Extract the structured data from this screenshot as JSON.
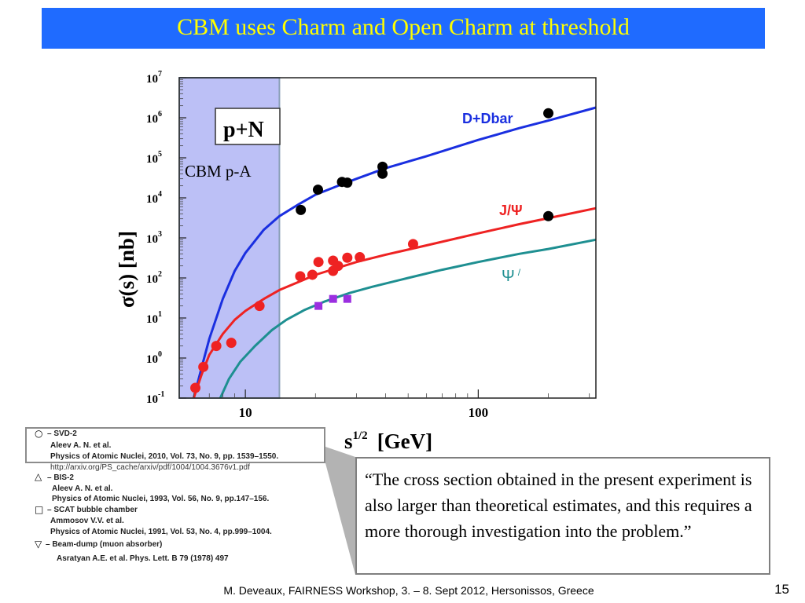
{
  "title": "CBM uses Charm and Open Charm at threshold",
  "chart_data": {
    "type": "scatter",
    "xscale": "log",
    "yscale": "log",
    "xlim": [
      5.2,
      320
    ],
    "ylim": [
      0.1,
      10000000
    ],
    "xlabel": "s^1/2 [GeV]",
    "xlabel_main": "s",
    "xlabel_sup": "1/2",
    "xlabel_unit": "[GeV]",
    "ylabel": "σ(s)  [nb]",
    "x_ticks": [
      {
        "value": 10,
        "label": "10"
      },
      {
        "value": 100,
        "label": "100"
      }
    ],
    "y_ticks": [
      {
        "exp": -1,
        "base": "10",
        "sup": "-1"
      },
      {
        "exp": 0,
        "base": "10",
        "sup": "0"
      },
      {
        "exp": 1,
        "base": "10",
        "sup": "1"
      },
      {
        "exp": 2,
        "base": "10",
        "sup": "2"
      },
      {
        "exp": 3,
        "base": "10",
        "sup": "3"
      },
      {
        "exp": 4,
        "base": "10",
        "sup": "4"
      },
      {
        "exp": 5,
        "base": "10",
        "sup": "5"
      },
      {
        "exp": 6,
        "base": "10",
        "sup": "6"
      },
      {
        "exp": 7,
        "base": "10",
        "sup": "7"
      }
    ],
    "panel_label": "p+N",
    "region": {
      "label": "CBM p-A",
      "x_from": 5.2,
      "x_to": 14
    },
    "curve_labels": {
      "ddbar": "D+Dbar",
      "jpsi": "J/Ψ",
      "psiprime": "Ψ",
      "psiprime_sup": "/"
    },
    "colors": {
      "ddbar": "#1a2fe0",
      "jpsi": "#ee2222",
      "psiprime": "#1e8f91",
      "region": "#bcc0f6"
    },
    "curves": [
      {
        "name": "D+Dbar",
        "color": "#1a2fe0",
        "x": [
          6.0,
          6.5,
          7.0,
          8.0,
          9.0,
          10,
          12,
          14,
          17,
          20,
          25,
          30,
          40,
          60,
          100,
          150,
          200,
          320
        ],
        "y": [
          0.1,
          0.6,
          3,
          30,
          150,
          420,
          1600,
          3500,
          7000,
          12000,
          20000,
          30000,
          55000,
          110000,
          280000,
          550000,
          850000,
          1800000
        ]
      },
      {
        "name": "J/Ψ",
        "color": "#ee2222",
        "x": [
          6.0,
          6.5,
          7.0,
          8.0,
          9.0,
          10,
          12,
          14,
          17,
          20,
          25,
          30,
          40,
          60,
          100,
          150,
          200,
          320
        ],
        "y": [
          0.1,
          0.4,
          1.2,
          4,
          9,
          15,
          30,
          50,
          80,
          120,
          180,
          250,
          380,
          650,
          1300,
          2200,
          3100,
          5500
        ]
      },
      {
        "name": "Ψ'",
        "color": "#1e8f91",
        "x": [
          7.8,
          8.5,
          9.5,
          11,
          13,
          15,
          18,
          22,
          28,
          35,
          50,
          70,
          100,
          150,
          200,
          320
        ],
        "y": [
          0.1,
          0.3,
          0.8,
          2,
          5,
          9,
          16,
          26,
          42,
          60,
          100,
          160,
          250,
          400,
          530,
          900
        ]
      }
    ],
    "series": [
      {
        "name": "D+Dbar data",
        "color": "#000000",
        "points": [
          {
            "x": 17.3,
            "y": 5000
          },
          {
            "x": 20.5,
            "y": 16000
          },
          {
            "x": 26,
            "y": 25000
          },
          {
            "x": 27.4,
            "y": 24000
          },
          {
            "x": 38.8,
            "y": 60000
          },
          {
            "x": 38.8,
            "y": 40000
          },
          {
            "x": 200,
            "y": 1300000
          }
        ]
      },
      {
        "name": "J/Ψ data",
        "color": "#ee2222",
        "points": [
          {
            "x": 6.1,
            "y": 0.18
          },
          {
            "x": 6.6,
            "y": 0.6
          },
          {
            "x": 7.5,
            "y": 2.0
          },
          {
            "x": 8.7,
            "y": 2.4
          },
          {
            "x": 11.5,
            "y": 20
          },
          {
            "x": 17.2,
            "y": 110
          },
          {
            "x": 19.4,
            "y": 120
          },
          {
            "x": 20.6,
            "y": 250
          },
          {
            "x": 23.8,
            "y": 270
          },
          {
            "x": 23.8,
            "y": 150
          },
          {
            "x": 25,
            "y": 200
          },
          {
            "x": 27.4,
            "y": 320
          },
          {
            "x": 31,
            "y": 330
          },
          {
            "x": 52.5,
            "y": 700
          }
        ]
      },
      {
        "name": "J/Ψ data (black)",
        "color": "#000000",
        "points": [
          {
            "x": 200,
            "y": 3500
          }
        ]
      },
      {
        "name": "Ψ' data",
        "color": "#9b2fe0",
        "points": [
          {
            "x": 20.6,
            "y": 20
          },
          {
            "x": 23.8,
            "y": 30
          },
          {
            "x": 27.4,
            "y": 30
          }
        ]
      }
    ]
  },
  "legend": {
    "items": [
      {
        "symbol": "○",
        "name": "– SVD-2",
        "authors": "Aleev A. N.  et al.",
        "ref": "Physics of Atomic Nuclei, 2010, Vol. 73, No. 9, pp. 1539–1550.",
        "url": "http://arxiv.org/PS_cache/arxiv/pdf/1004/1004.3676v1.pdf"
      },
      {
        "symbol": "△",
        "name": "–   BIS-2",
        "authors": "Aleev A. N.  et al.",
        "ref": "Physics of Atomic Nuclei, 1993, Vol. 56, No. 9, pp.147–156."
      },
      {
        "symbol": "□",
        "name": "– SCAT bubble chamber",
        "authors": "Ammosov V.V. et al.",
        "ref": "Physics of Atomic Nuclei, 1991, Vol. 53, No. 4, pp.999–1004."
      },
      {
        "symbol": "▽",
        "name": "–  Beam-dump (muon absorber)",
        "authors": "",
        "ref": "Asratyan A.E. et al.  Phys. Lett. B 79 (1978) 497"
      }
    ]
  },
  "quote": "“The cross section obtained in the present experiment is also larger than theoretical estimates, and this requires a more thorough investigation into the problem.”",
  "footer": "M. Deveaux, FAIRNESS Workshop, 3. – 8. Sept 2012, Hersonissos, Greece",
  "page_number": "15"
}
